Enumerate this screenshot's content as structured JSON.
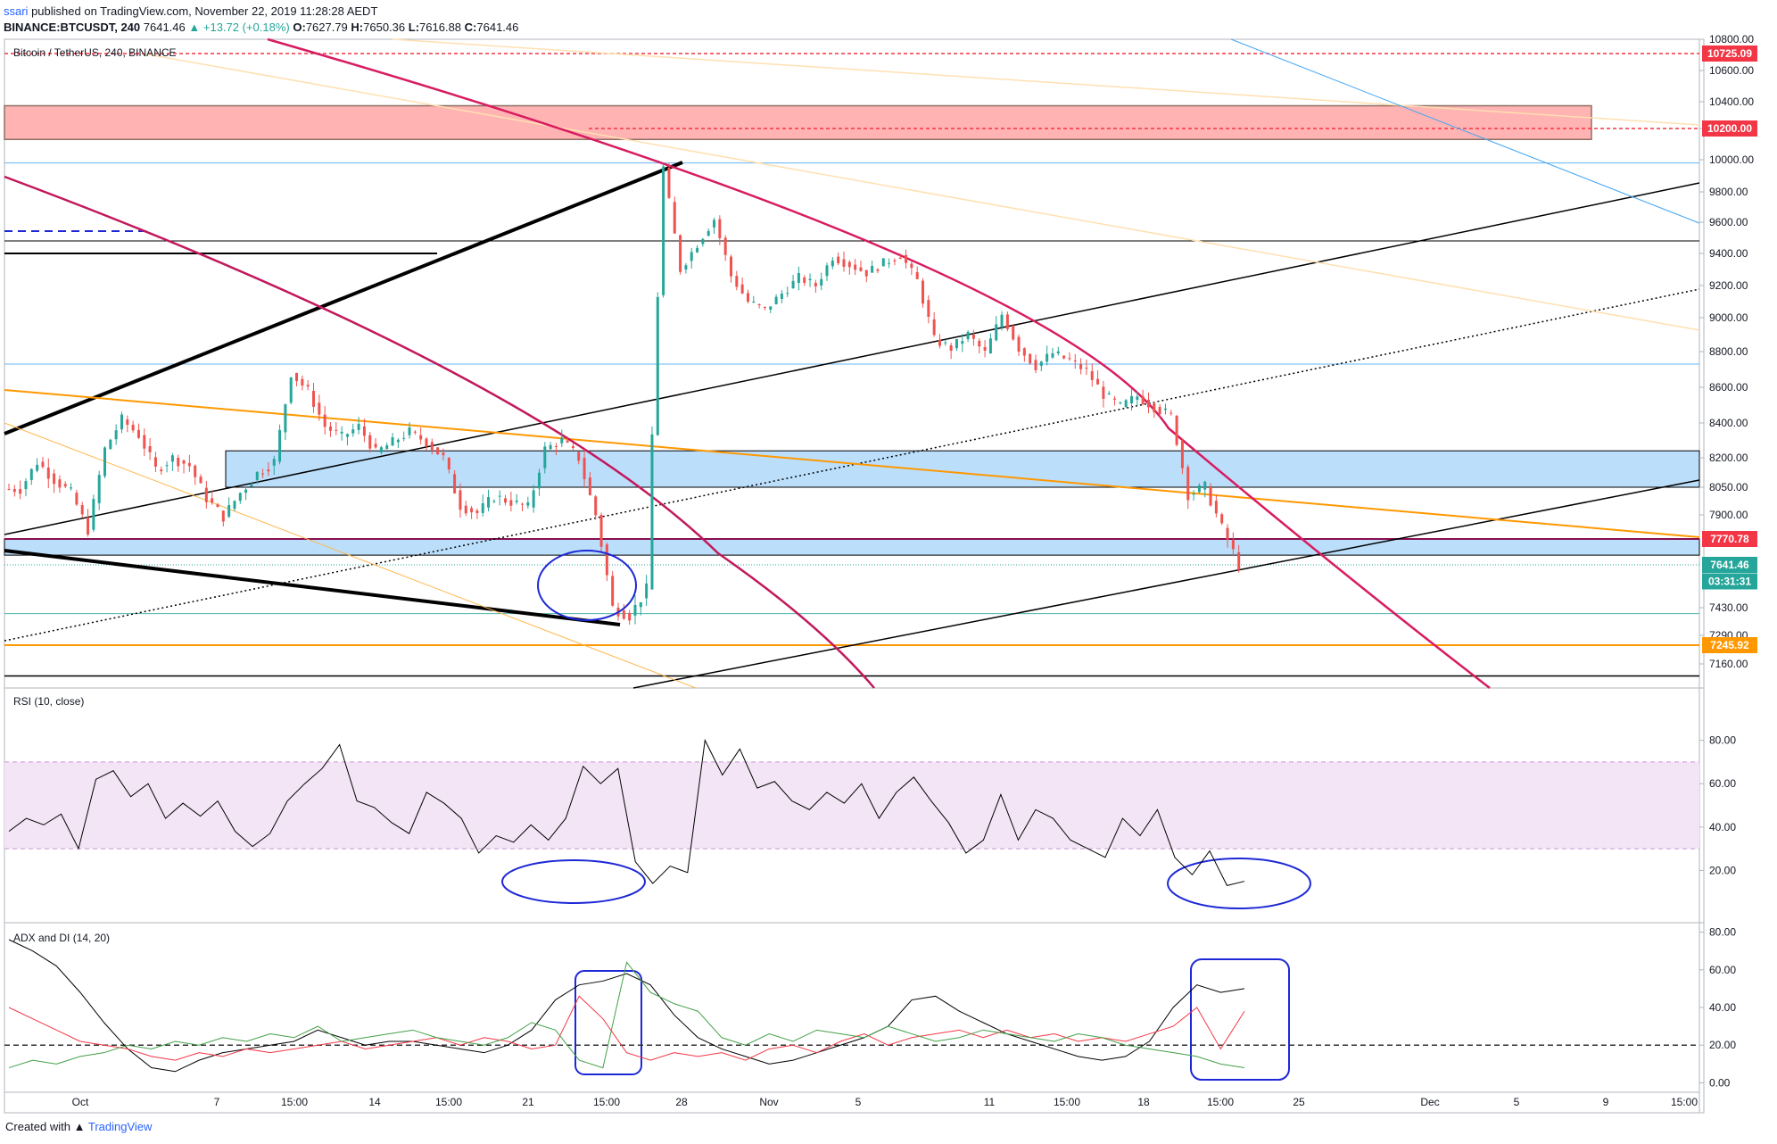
{
  "header": {
    "user": "ssari",
    "published": " published on TradingView.com, November 22, 2019 11:28:28 AEDT",
    "symbol": "BINANCE:BTCUSDT, 240",
    "last": "7641.46",
    "change": "▲ +13.72 (+0.18%)",
    "o_label": "O:",
    "o": "7627.79",
    "h_label": "H:",
    "h": "7650.36",
    "l_label": "L:",
    "l": "7616.88",
    "c_label": "C:",
    "c": "7641.46"
  },
  "pane_titles": {
    "price": "Bitcoin / TetherUS, 240, BINANCE",
    "rsi": "RSI (10, close)",
    "adx": "ADX and DI (14, 20)"
  },
  "footer": {
    "created": "Created with",
    "brand": "TradingView"
  },
  "colors": {
    "up": "#26a69a",
    "down": "#ef5350",
    "resistance_zone": "#ffb3b3",
    "support_zone": "#bbdefb",
    "arc": "#d81b60",
    "orange": "#ff9800",
    "rsi_band": "#f3e5f5",
    "marker": "#1e28d6"
  },
  "chart_data": [
    {
      "type": "candlestick",
      "title": "Bitcoin / TetherUS, 240, BINANCE",
      "ylim": [
        7100,
        10850
      ],
      "x_ticks": [
        "Oct",
        "7",
        "15:00",
        "14",
        "15:00",
        "21",
        "15:00",
        "28",
        "Nov",
        "5",
        "11",
        "15:00",
        "18",
        "15:00",
        "25",
        "Dec",
        "5",
        "9",
        "15:00"
      ],
      "y_ticks": [
        10800,
        10600,
        10400,
        10200,
        10000,
        9800,
        9600,
        9400,
        9200,
        9000,
        8800,
        8600,
        8400,
        8200,
        8050,
        7900,
        7770,
        7641,
        7430,
        7290,
        7160
      ],
      "price_badges": [
        {
          "label": "10725.09",
          "value": 10725.09,
          "color": "#f23645"
        },
        {
          "label": "10200.00",
          "value": 10200.0,
          "color": "#f23645"
        },
        {
          "label": "7770.78",
          "value": 7770.78,
          "color": "#f23645"
        },
        {
          "label": "7641.46",
          "value": 7641.46,
          "color": "#26a69a"
        },
        {
          "label": "03:31:31",
          "value": 7560,
          "color": "#26a69a"
        },
        {
          "label": "7245.92",
          "value": 7245.92,
          "color": "#ff9800"
        }
      ],
      "last_price": 7641.46,
      "zones": [
        {
          "name": "resistance",
          "from": 10130,
          "to": 10370
        },
        {
          "name": "support-upper",
          "from": 8050,
          "to": 8240
        },
        {
          "name": "support-lower",
          "from": 7690,
          "to": 7770
        }
      ],
      "horizontal_levels": [
        10725.09,
        10200.0,
        9980,
        9480,
        8730,
        7770.78,
        7641.46,
        7400,
        7245.92,
        7130
      ],
      "approx_close_path": [
        8040,
        8180,
        8090,
        8020,
        7820,
        8250,
        8420,
        8330,
        8140,
        8200,
        8160,
        7990,
        7890,
        8020,
        8120,
        8180,
        8680,
        8580,
        8380,
        8320,
        8380,
        8230,
        8290,
        8350,
        8290,
        8200,
        7950,
        7910,
        8000,
        7970,
        7940,
        8250,
        8300,
        8200,
        7900,
        7430,
        7390,
        7520,
        9950,
        9300,
        9460,
        9620,
        9260,
        9100,
        9050,
        9150,
        9250,
        9200,
        9380,
        9330,
        9280,
        9340,
        9390,
        9230,
        8870,
        8820,
        8900,
        8790,
        9020,
        8820,
        8720,
        8790,
        8750,
        8690,
        8560,
        8490,
        8550,
        8490,
        8440,
        8010,
        8050,
        7830,
        7641
      ]
    },
    {
      "type": "line",
      "title": "RSI (10, close)",
      "ylim": [
        0,
        100
      ],
      "y_ticks": [
        80.0,
        60.0,
        40.0,
        20.0
      ],
      "band": [
        30,
        70
      ],
      "values": [
        38,
        44,
        41,
        46,
        30,
        62,
        66,
        54,
        60,
        44,
        51,
        45,
        52,
        38,
        31,
        37,
        52,
        60,
        67,
        78,
        52,
        49,
        42,
        37,
        56,
        51,
        44,
        28,
        36,
        33,
        41,
        34,
        44,
        68,
        60,
        67,
        24,
        14,
        22,
        19,
        80,
        64,
        76,
        58,
        61,
        52,
        48,
        56,
        51,
        60,
        44,
        56,
        63,
        52,
        42,
        28,
        34,
        55,
        34,
        48,
        44,
        34,
        30,
        26,
        44,
        36,
        48,
        26,
        18,
        29,
        13,
        15
      ]
    },
    {
      "type": "line",
      "title": "ADX and DI (14, 20)",
      "ylim": [
        -5,
        85
      ],
      "y_ticks": [
        80.0,
        60.0,
        40.0,
        20.0,
        0.0
      ],
      "threshold": 20,
      "series": [
        {
          "values": [
            76,
            70,
            62,
            48,
            32,
            18,
            8,
            6,
            12,
            16,
            18,
            20,
            22,
            28,
            24,
            20,
            22,
            22,
            20,
            18,
            16,
            20,
            28,
            44,
            52,
            54,
            58,
            52,
            36,
            24,
            18,
            14,
            10,
            12,
            16,
            20,
            24,
            30,
            44,
            46,
            38,
            32,
            26,
            22,
            18,
            14,
            12,
            14,
            22,
            40,
            52,
            48,
            50
          ]
        },
        {
          "values": [
            40,
            34,
            28,
            22,
            20,
            18,
            14,
            12,
            16,
            14,
            18,
            16,
            18,
            20,
            22,
            18,
            20,
            22,
            24,
            20,
            24,
            22,
            18,
            20,
            46,
            34,
            16,
            12,
            16,
            14,
            16,
            12,
            18,
            20,
            16,
            22,
            26,
            20,
            24,
            26,
            28,
            24,
            28,
            24,
            26,
            22,
            24,
            22,
            26,
            30,
            40,
            18,
            38
          ]
        },
        {
          "values": [
            8,
            12,
            10,
            14,
            16,
            20,
            18,
            22,
            20,
            24,
            22,
            26,
            24,
            30,
            22,
            24,
            26,
            28,
            24,
            22,
            20,
            24,
            32,
            28,
            12,
            8,
            64,
            48,
            42,
            38,
            24,
            20,
            26,
            22,
            28,
            26,
            24,
            30,
            26,
            22,
            24,
            28,
            26,
            24,
            22,
            26,
            24,
            20,
            18,
            16,
            14,
            10,
            8
          ]
        }
      ]
    }
  ]
}
